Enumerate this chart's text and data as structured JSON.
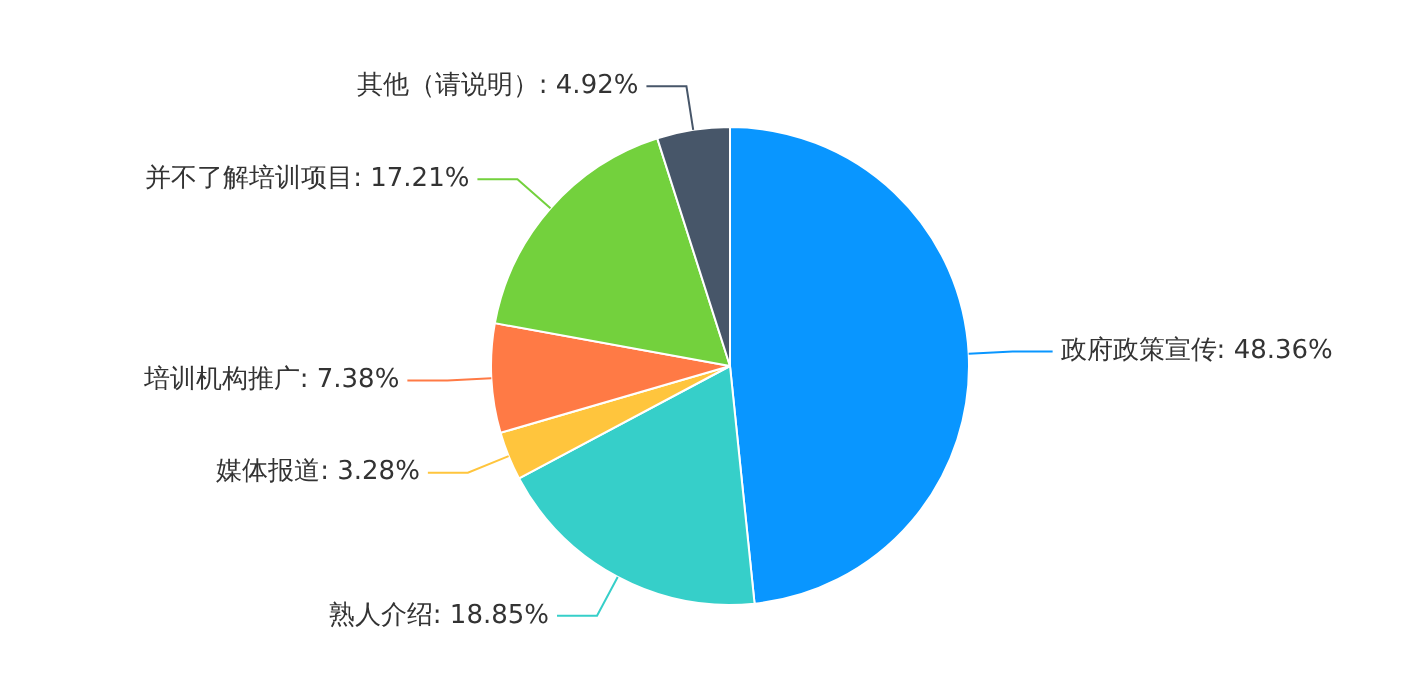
{
  "chart_data": {
    "type": "pie",
    "categories": [
      "政府政策宣传",
      "熟人介绍",
      "媒体报道",
      "培训机构推广",
      "并不了解培训项目",
      "其他（请说明）"
    ],
    "values": [
      48.36,
      18.85,
      3.28,
      7.38,
      17.21,
      4.92
    ],
    "value_labels": [
      "48.36%",
      "18.85%",
      "3.28%",
      "7.38%",
      "17.21%",
      "4.92%"
    ],
    "colors": [
      "#0996ff",
      "#36cfc9",
      "#ffc53d",
      "#ff7a45",
      "#73d13d",
      "#475669"
    ],
    "legend": false
  }
}
